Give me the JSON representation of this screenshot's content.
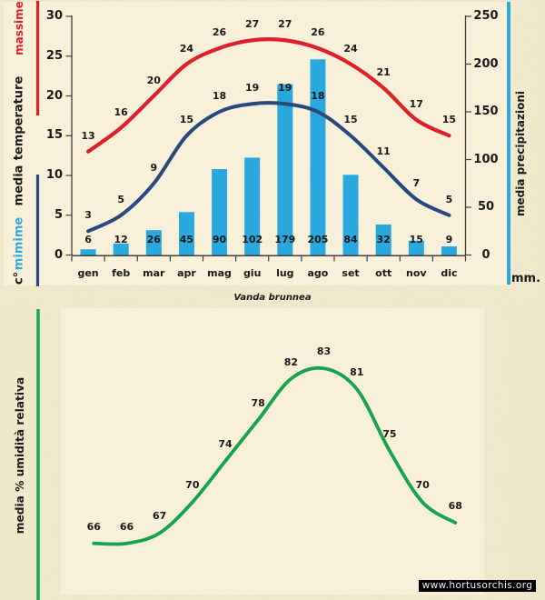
{
  "page": {
    "chart_title": "Vanda brunnea",
    "watermark_text": "www.hortusorchis.org",
    "background_color": "#efe8cb",
    "plot_background_color": "#f9f0da"
  },
  "chart_data": [
    {
      "id": "climate",
      "type": "combo",
      "categories": [
        "gen",
        "feb",
        "mar",
        "apr",
        "mag",
        "giu",
        "lug",
        "ago",
        "set",
        "ott",
        "nov",
        "dic"
      ],
      "series": [
        {
          "name": "temperature massime",
          "type": "line",
          "axis": "temperature",
          "color": "#e01f26",
          "values": [
            13,
            16,
            20,
            24,
            26,
            27,
            27,
            26,
            24,
            21,
            17,
            15
          ]
        },
        {
          "name": "temperature mimime",
          "type": "line",
          "axis": "temperature",
          "color": "#27497e",
          "values": [
            3,
            5,
            9,
            15,
            18,
            19,
            19,
            18,
            15,
            11,
            7,
            5
          ]
        },
        {
          "name": "media precipitazioni",
          "type": "bar",
          "axis": "precipitation",
          "color": "#29a8dd",
          "values": [
            6,
            12,
            26,
            45,
            90,
            102,
            179,
            205,
            84,
            32,
            15,
            9
          ]
        }
      ],
      "temperature_axis": {
        "range": [
          0,
          30
        ],
        "ticks": [
          "0",
          "5",
          "10",
          "15",
          "20",
          "25",
          "30"
        ],
        "label_words_bottom_to_top": [
          {
            "text": "c°",
            "color": "#1a1a1a"
          },
          {
            "text": "mimime",
            "color": "#2fa9dc"
          },
          {
            "text": "media",
            "color": "#1a1a1a"
          },
          {
            "text": "temperature",
            "color": "#1a1a1a"
          },
          {
            "text": "massime",
            "color": "#e01f26"
          }
        ]
      },
      "precipitation_axis": {
        "range": [
          0,
          250
        ],
        "ticks": [
          "0",
          "50",
          "100",
          "150",
          "200",
          "250"
        ],
        "label": "media  precipitazioni",
        "unit": "mm.",
        "accent_color": "#29a8dd"
      }
    },
    {
      "id": "humidity",
      "type": "line",
      "color": "#15a34c",
      "ylabel": "media %  umidità relativa",
      "values": [
        66,
        66,
        67,
        70,
        74,
        78,
        82,
        83,
        81,
        75,
        70,
        68
      ]
    }
  ]
}
